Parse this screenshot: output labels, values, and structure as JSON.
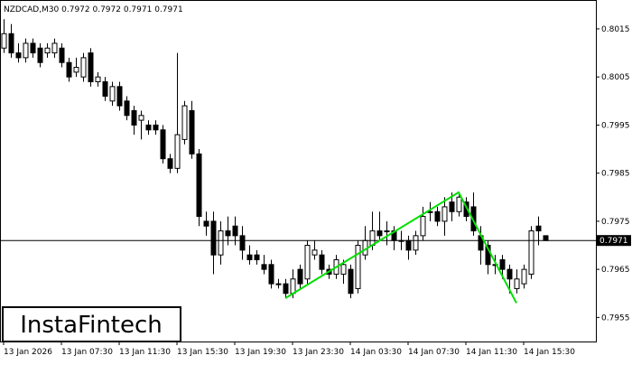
{
  "chart_data": {
    "type": "candlestick",
    "title": "NZDCAD,M30  0.7972 0.7972 0.7971 0.7971",
    "logo": "InstaFintech",
    "categories": [
      "13 Jan 2026",
      null,
      null,
      null,
      null,
      null,
      null,
      null,
      "13 Jan 07:30",
      null,
      null,
      null,
      null,
      null,
      null,
      null,
      "13 Jan 11:30",
      null,
      null,
      null,
      null,
      null,
      null,
      null,
      "13 Jan 15:30",
      null,
      null,
      null,
      null,
      null,
      null,
      null,
      "13 Jan 19:30",
      null,
      null,
      null,
      null,
      null,
      null,
      null,
      "13 Jan 23:30",
      null,
      null,
      null,
      null,
      null,
      null,
      null,
      "14 Jan 03:30",
      null,
      null,
      null,
      null,
      null,
      null,
      null,
      "14 Jan 07:30",
      null,
      null,
      null,
      null,
      null,
      null,
      null,
      "14 Jan 11:30",
      null,
      null,
      null,
      null,
      null,
      null,
      null,
      "14 Jan 15:30",
      null,
      null,
      null
    ],
    "open": [
      0.8011,
      0.8014,
      0.801,
      0.8009,
      0.8012,
      0.8011,
      0.801,
      0.801,
      0.8011,
      0.8008,
      0.8006,
      0.8005,
      0.801,
      0.8004,
      0.8004,
      0.8,
      0.8003,
      0.8,
      0.7998,
      0.7996,
      0.7995,
      0.7995,
      0.7994,
      0.7988,
      0.7986,
      0.7992,
      0.7998,
      0.7989,
      0.7975,
      0.7975,
      0.7968,
      0.7973,
      0.7974,
      0.7972,
      0.7968,
      0.7968,
      0.7966,
      0.7966,
      0.7962,
      0.7962,
      0.796,
      0.7965,
      0.7963,
      0.7968,
      0.7968,
      0.7965,
      0.7964,
      0.7964,
      0.7965,
      0.7961,
      0.7968,
      0.797,
      0.7973,
      0.7973,
      0.7973,
      0.7971,
      0.7971,
      0.7969,
      0.7972,
      0.7977,
      0.7977,
      0.7975,
      0.7979,
      0.7977,
      0.7979,
      0.7978,
      0.7972,
      0.797,
      0.7966,
      0.7967,
      0.7965,
      0.7961,
      0.7962,
      0.7964,
      0.7974,
      0.7972
    ],
    "high": [
      0.8017,
      0.8016,
      0.8012,
      0.8013,
      0.8013,
      0.8012,
      0.8012,
      0.8013,
      0.8012,
      0.8009,
      0.8009,
      0.801,
      0.8011,
      0.8006,
      0.8005,
      0.8004,
      0.8004,
      0.8001,
      0.7999,
      0.7998,
      0.7996,
      0.7996,
      0.7995,
      0.7989,
      0.801,
      0.8,
      0.8,
      0.799,
      0.7977,
      0.7977,
      0.7975,
      0.7976,
      0.7976,
      0.7974,
      0.797,
      0.7969,
      0.7968,
      0.7967,
      0.7963,
      0.7963,
      0.7965,
      0.7966,
      0.7971,
      0.7971,
      0.7969,
      0.7966,
      0.7968,
      0.7967,
      0.7966,
      0.7971,
      0.7974,
      0.7977,
      0.7977,
      0.7975,
      0.7974,
      0.7973,
      0.7972,
      0.7973,
      0.7978,
      0.7979,
      0.7978,
      0.798,
      0.7981,
      0.7981,
      0.798,
      0.7981,
      0.7974,
      0.7971,
      0.7968,
      0.7968,
      0.7966,
      0.7965,
      0.7966,
      0.7974,
      0.7976,
      0.7972
    ],
    "low": [
      0.801,
      0.8009,
      0.8008,
      0.8008,
      0.8009,
      0.8007,
      0.8009,
      0.8009,
      0.8007,
      0.8004,
      0.8005,
      0.8004,
      0.8003,
      0.8003,
      0.8,
      0.7999,
      0.7998,
      0.7996,
      0.7993,
      0.7992,
      0.7993,
      0.7993,
      0.7987,
      0.7985,
      0.7985,
      0.7991,
      0.7988,
      0.7974,
      0.7972,
      0.7964,
      0.7966,
      0.797,
      0.797,
      0.7967,
      0.7966,
      0.7966,
      0.7964,
      0.7961,
      0.7961,
      0.7959,
      0.7959,
      0.7961,
      0.7962,
      0.7967,
      0.7964,
      0.7963,
      0.7963,
      0.7962,
      0.7959,
      0.796,
      0.7967,
      0.7969,
      0.7971,
      0.797,
      0.7969,
      0.7969,
      0.7967,
      0.7968,
      0.7971,
      0.7975,
      0.7974,
      0.7972,
      0.7975,
      0.7976,
      0.7975,
      0.7972,
      0.7966,
      0.7964,
      0.7964,
      0.7963,
      0.796,
      0.796,
      0.7961,
      0.7963,
      0.797,
      0.7971
    ],
    "close": [
      0.8014,
      0.801,
      0.8009,
      0.8012,
      0.801,
      0.8008,
      0.8011,
      0.8012,
      0.8008,
      0.8005,
      0.8007,
      0.8009,
      0.8004,
      0.8005,
      0.8001,
      0.8003,
      0.7999,
      0.7997,
      0.7995,
      0.7997,
      0.7994,
      0.7994,
      0.7988,
      0.7986,
      0.7993,
      0.7999,
      0.7989,
      0.7976,
      0.7974,
      0.7968,
      0.7973,
      0.7972,
      0.7972,
      0.7969,
      0.7967,
      0.7967,
      0.7965,
      0.7962,
      0.7962,
      0.796,
      0.7963,
      0.7962,
      0.797,
      0.7969,
      0.7965,
      0.7964,
      0.7967,
      0.7966,
      0.796,
      0.797,
      0.7971,
      0.7973,
      0.7972,
      0.7973,
      0.7971,
      0.7971,
      0.7969,
      0.7972,
      0.7976,
      0.7977,
      0.7975,
      0.7978,
      0.7977,
      0.798,
      0.7976,
      0.7973,
      0.7969,
      0.7966,
      0.7966,
      0.7965,
      0.7963,
      0.7963,
      0.7965,
      0.7973,
      0.7973,
      0.7971
    ],
    "up_color": "#ffffff",
    "down_color": "#000000",
    "ylim": [
      0.795,
      0.8021
    ],
    "yticks": [
      0.7955,
      0.7965,
      0.7975,
      0.7985,
      0.7995,
      0.8005,
      0.8015
    ],
    "price_line": 0.7971,
    "pattern": {
      "color": "#00e000",
      "x": [
        39,
        63,
        71
      ],
      "values": [
        0.7959,
        0.7981,
        0.7958
      ]
    }
  }
}
